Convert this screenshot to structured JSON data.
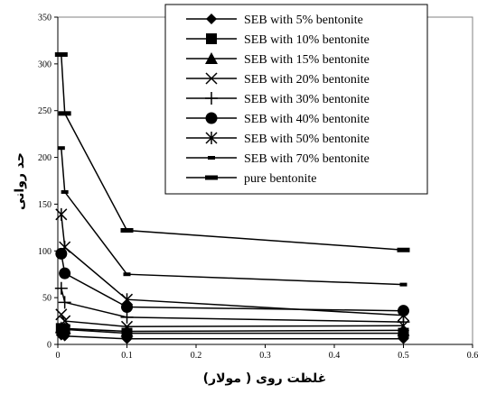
{
  "chart_data": {
    "type": "line",
    "title": "",
    "xlabel": "غلظت روی ( مولار)",
    "ylabel": "حد روانی",
    "xlim": [
      0,
      0.6
    ],
    "ylim": [
      0,
      350
    ],
    "xticks": [
      "0",
      "0.1",
      "0.2",
      "0.3",
      "0.4",
      "0.5",
      "0.6"
    ],
    "yticks": [
      "0",
      "50",
      "100",
      "150",
      "200",
      "250",
      "300",
      "350"
    ],
    "x": [
      0.005,
      0.01,
      0.1,
      0.5
    ],
    "grid": false,
    "legend_position": "top-right",
    "series": [
      {
        "name": "SEB with 5% bentonite",
        "marker": "diamond",
        "values": [
          10,
          9,
          6,
          6
        ]
      },
      {
        "name": "SEB with 10% bentonite",
        "marker": "square",
        "values": [
          17,
          16,
          12,
          12
        ]
      },
      {
        "name": "SEB with 15% bentonite",
        "marker": "triangle",
        "values": [
          18,
          17,
          14,
          15
        ]
      },
      {
        "name": "SEB with 20% bentonite",
        "marker": "x",
        "values": [
          32,
          25,
          19,
          20
        ]
      },
      {
        "name": "SEB with 30% bentonite",
        "marker": "plus",
        "values": [
          60,
          45,
          29,
          24
        ]
      },
      {
        "name": "SEB with 40% bentonite",
        "marker": "circle",
        "values": [
          97,
          76,
          40,
          36
        ]
      },
      {
        "name": "SEB with 50% bentonite",
        "marker": "star",
        "values": [
          139,
          104,
          48,
          31
        ]
      },
      {
        "name": "SEB with 70% bentonite",
        "marker": "dash-small",
        "values": [
          210,
          163,
          75,
          64
        ]
      },
      {
        "name": "pure bentonite",
        "marker": "dash",
        "values": [
          310,
          247,
          122,
          101
        ]
      }
    ]
  }
}
